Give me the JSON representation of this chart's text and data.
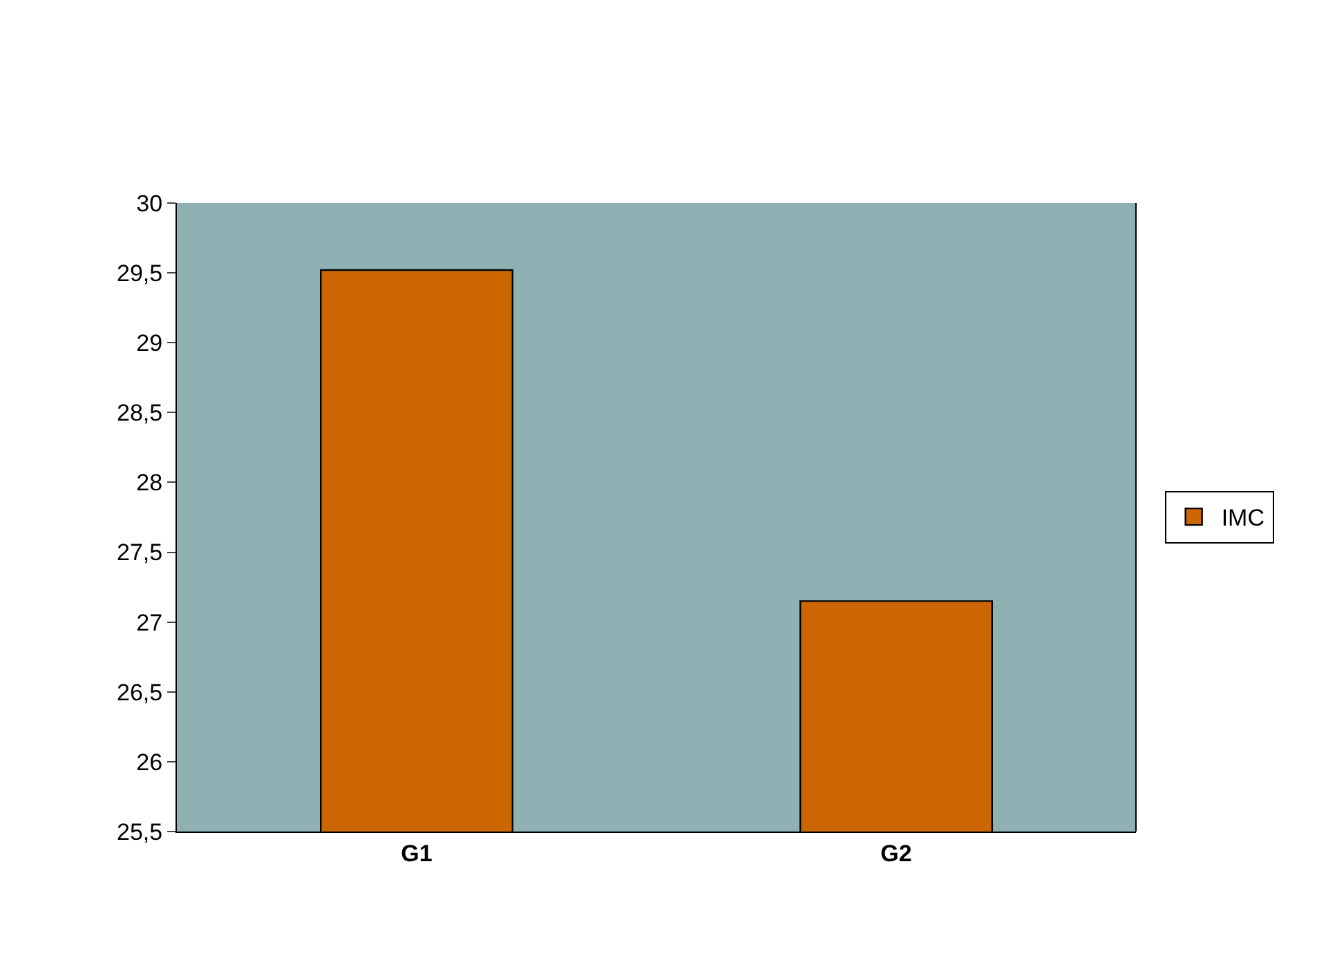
{
  "chart_data": {
    "type": "bar",
    "categories": [
      "G1",
      "G2"
    ],
    "series": [
      {
        "name": "IMC",
        "color": "#cc6600",
        "values": [
          29.52,
          27.15
        ]
      }
    ],
    "ylim": [
      25.5,
      30
    ],
    "yticks": [
      {
        "value": 25.5,
        "label": "25,5"
      },
      {
        "value": 26,
        "label": "26"
      },
      {
        "value": 26.5,
        "label": "26,5"
      },
      {
        "value": 27,
        "label": "27"
      },
      {
        "value": 27.5,
        "label": "27,5"
      },
      {
        "value": 28,
        "label": "28"
      },
      {
        "value": 28.5,
        "label": "28,5"
      },
      {
        "value": 29,
        "label": "29"
      },
      {
        "value": 29.5,
        "label": "29,5"
      },
      {
        "value": 30,
        "label": "30"
      }
    ],
    "grid": false,
    "legend": "right"
  }
}
